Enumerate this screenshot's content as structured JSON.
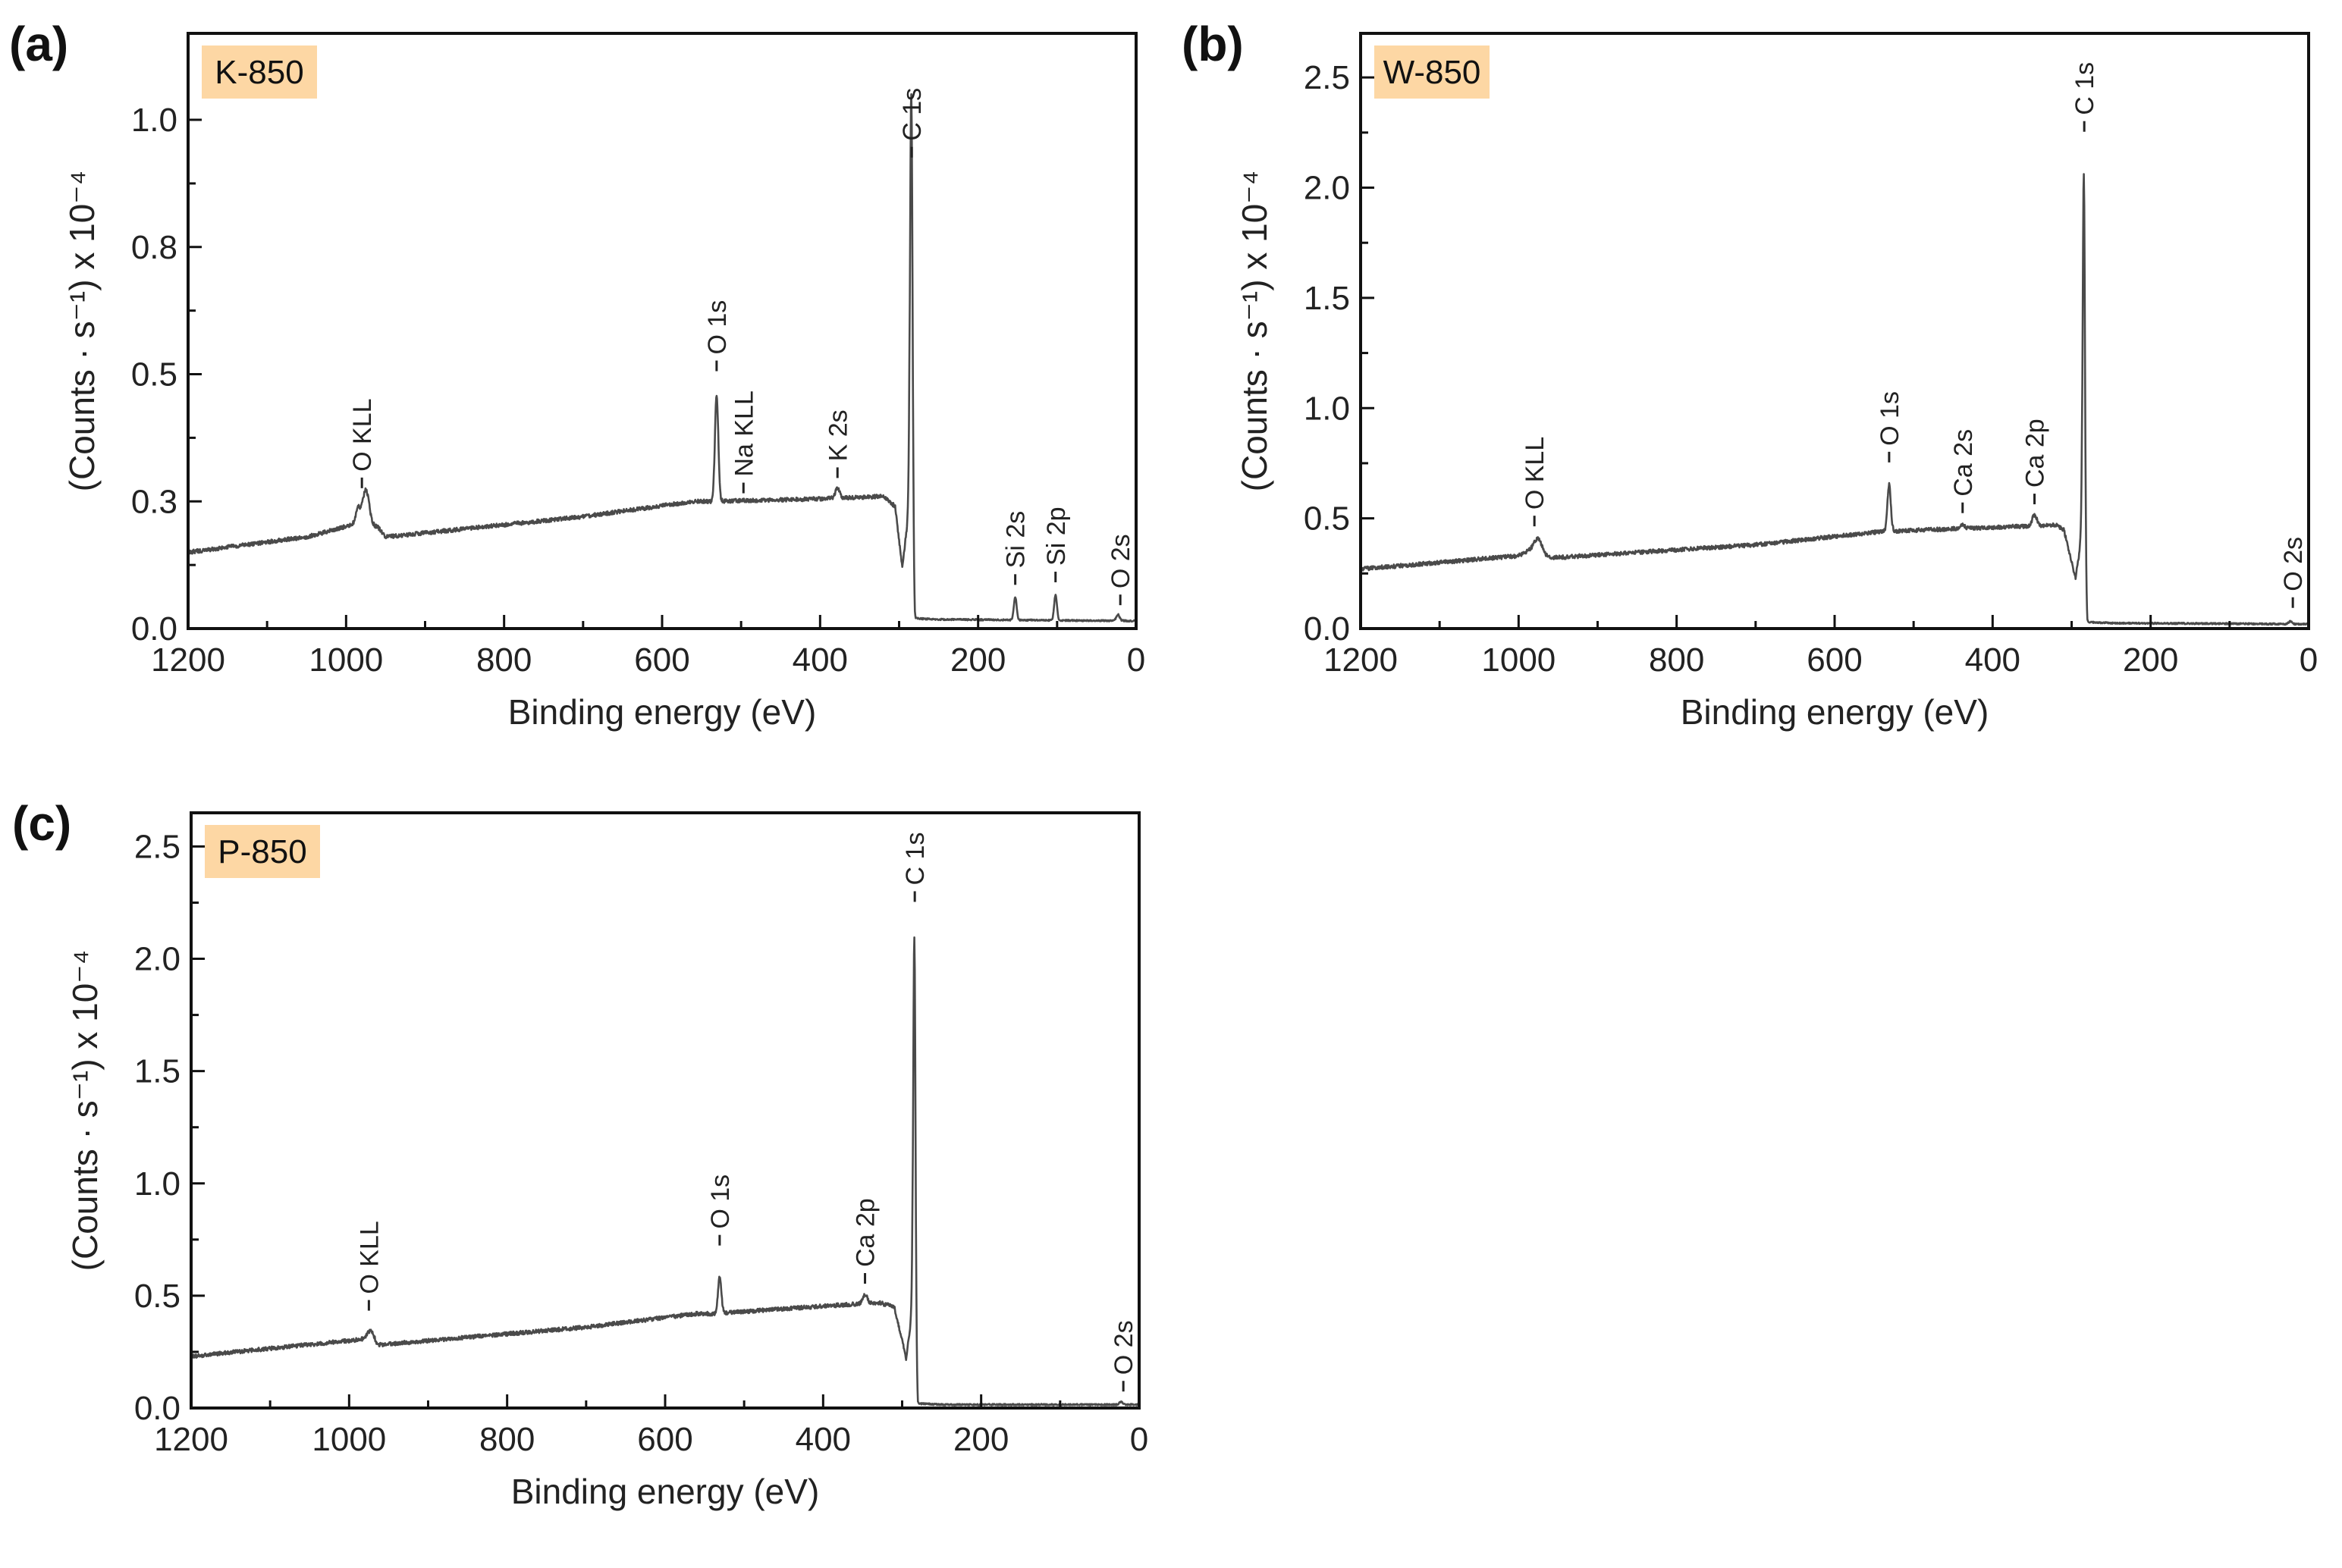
{
  "figure": {
    "colors": {
      "line": "#4a4a4a",
      "axis": "#111111",
      "sample_tag": "#fdd7a4",
      "text": "#222222"
    }
  },
  "chart_data": [
    {
      "type": "line",
      "panel_letter": "(a)",
      "sample_label": "K-850",
      "xlabel": "Binding energy (eV)",
      "ylabel": "(Counts · s⁻¹) x 10⁻⁴",
      "xlim": [
        1200,
        0
      ],
      "ylim": [
        0,
        1.17
      ],
      "x_ticks": [
        1200,
        1000,
        800,
        600,
        400,
        200,
        0
      ],
      "x_tick_labels": [
        "1200",
        "1000",
        "800",
        "600",
        "400",
        "200",
        "0"
      ],
      "y_ticks": [
        0.0,
        0.25,
        0.5,
        0.75,
        1.0
      ],
      "y_tick_labels": [
        "0.0",
        "0.3",
        "0.5",
        "0.8",
        "1.0"
      ],
      "baseline": [
        [
          1200,
          0.15
        ],
        [
          1050,
          0.18
        ],
        [
          990,
          0.205
        ],
        [
          960,
          0.2
        ],
        [
          950,
          0.18
        ],
        [
          700,
          0.22
        ],
        [
          560,
          0.25
        ],
        [
          540,
          0.25
        ],
        [
          400,
          0.255
        ],
        [
          320,
          0.26
        ],
        [
          305,
          0.24
        ],
        [
          296,
          0.12
        ],
        [
          290,
          0.2
        ],
        [
          287,
          0.28
        ],
        [
          284,
          0.15
        ],
        [
          280,
          0.02
        ],
        [
          250,
          0.018
        ],
        [
          0,
          0.015
        ]
      ],
      "peaks": [
        {
          "x": 985,
          "h": 0.03,
          "w": 4
        },
        {
          "x": 975,
          "h": 0.07,
          "w": 6
        },
        {
          "x": 531,
          "h": 0.21,
          "w": 3
        },
        {
          "x": 378,
          "h": 0.02,
          "w": 4
        },
        {
          "x": 284.5,
          "h": 0.88,
          "w": 2.2
        },
        {
          "x": 153,
          "h": 0.045,
          "w": 2.5
        },
        {
          "x": 102,
          "h": 0.05,
          "w": 2.5
        },
        {
          "x": 23,
          "h": 0.012,
          "w": 3
        }
      ],
      "annotations": [
        {
          "label": "O KLL",
          "x": 980,
          "y": 0.27
        },
        {
          "label": "O 1s",
          "x": 531,
          "y": 0.5
        },
        {
          "label": "Na KLL",
          "x": 497,
          "y": 0.26
        },
        {
          "label": "K 2s",
          "x": 378,
          "y": 0.29
        },
        {
          "label": "C 1s",
          "x": 284,
          "y": 0.92
        },
        {
          "label": "Si 2s",
          "x": 153,
          "y": 0.08
        },
        {
          "label": "Si 2p",
          "x": 102,
          "y": 0.085
        },
        {
          "label": "O 2s",
          "x": 20,
          "y": 0.04
        }
      ]
    },
    {
      "type": "line",
      "panel_letter": "(b)",
      "sample_label": "W-850",
      "xlabel": "Binding energy (eV)",
      "ylabel": "(Counts · s⁻¹) x 10⁻⁴",
      "xlim": [
        1200,
        0
      ],
      "ylim": [
        0,
        2.7
      ],
      "x_ticks": [
        1200,
        1000,
        800,
        600,
        400,
        200,
        0
      ],
      "x_tick_labels": [
        "1200",
        "1000",
        "800",
        "600",
        "400",
        "200",
        "0"
      ],
      "y_ticks": [
        0.0,
        0.5,
        1.0,
        1.5,
        2.0,
        2.5
      ],
      "y_tick_labels": [
        "0.0",
        "0.5",
        "1.0",
        "1.5",
        "2.0",
        "2.5"
      ],
      "baseline": [
        [
          1200,
          0.27
        ],
        [
          1000,
          0.33
        ],
        [
          980,
          0.37
        ],
        [
          960,
          0.32
        ],
        [
          700,
          0.38
        ],
        [
          540,
          0.44
        ],
        [
          320,
          0.47
        ],
        [
          310,
          0.45
        ],
        [
          300,
          0.3
        ],
        [
          295,
          0.23
        ],
        [
          290,
          0.35
        ],
        [
          287,
          0.5
        ],
        [
          283,
          0.2
        ],
        [
          280,
          0.03
        ],
        [
          250,
          0.025
        ],
        [
          0,
          0.02
        ]
      ],
      "peaks": [
        {
          "x": 975,
          "h": 0.05,
          "w": 6
        },
        {
          "x": 531,
          "h": 0.21,
          "w": 3
        },
        {
          "x": 438,
          "h": 0.015,
          "w": 4
        },
        {
          "x": 347,
          "h": 0.05,
          "w": 4
        },
        {
          "x": 284.5,
          "h": 1.75,
          "w": 2.0
        },
        {
          "x": 23,
          "h": 0.012,
          "w": 3
        }
      ],
      "annotations": [
        {
          "label": "O KLL",
          "x": 980,
          "y": 0.45
        },
        {
          "label": "O 1s",
          "x": 531,
          "y": 0.74
        },
        {
          "label": "Ca 2s",
          "x": 438,
          "y": 0.51
        },
        {
          "label": "Ca 2p",
          "x": 347,
          "y": 0.55
        },
        {
          "label": "C 1s",
          "x": 284,
          "y": 2.24
        },
        {
          "label": "O 2s",
          "x": 20,
          "y": 0.08
        }
      ]
    },
    {
      "type": "line",
      "panel_letter": "(c)",
      "sample_label": "P-850",
      "xlabel": "Binding energy (eV)",
      "ylabel": "(Counts · s⁻¹) x 10⁻⁴",
      "xlim": [
        1200,
        0
      ],
      "ylim": [
        0,
        2.65
      ],
      "x_ticks": [
        1200,
        1000,
        800,
        600,
        400,
        200,
        0
      ],
      "x_tick_labels": [
        "1200",
        "1000",
        "800",
        "600",
        "400",
        "200",
        "0"
      ],
      "y_ticks": [
        0.0,
        0.5,
        1.0,
        1.5,
        2.0,
        2.5
      ],
      "y_tick_labels": [
        "0.0",
        "0.5",
        "1.0",
        "1.5",
        "2.0",
        "2.5"
      ],
      "baseline": [
        [
          1200,
          0.23
        ],
        [
          1000,
          0.3
        ],
        [
          975,
          0.31
        ],
        [
          965,
          0.28
        ],
        [
          700,
          0.36
        ],
        [
          560,
          0.42
        ],
        [
          540,
          0.42
        ],
        [
          330,
          0.47
        ],
        [
          310,
          0.45
        ],
        [
          300,
          0.3
        ],
        [
          295,
          0.22
        ],
        [
          290,
          0.35
        ],
        [
          287,
          0.5
        ],
        [
          283,
          0.2
        ],
        [
          280,
          0.02
        ],
        [
          250,
          0.015
        ],
        [
          0,
          0.015
        ]
      ],
      "peaks": [
        {
          "x": 972,
          "h": 0.04,
          "w": 6
        },
        {
          "x": 531,
          "h": 0.16,
          "w": 3
        },
        {
          "x": 347,
          "h": 0.04,
          "w": 4
        },
        {
          "x": 284.5,
          "h": 1.78,
          "w": 2.0
        },
        {
          "x": 23,
          "h": 0.012,
          "w": 3
        }
      ],
      "annotations": [
        {
          "label": "O KLL",
          "x": 975,
          "y": 0.42
        },
        {
          "label": "O 1s",
          "x": 531,
          "y": 0.71
        },
        {
          "label": "Ca 2p",
          "x": 347,
          "y": 0.54
        },
        {
          "label": "C 1s",
          "x": 284,
          "y": 2.24
        },
        {
          "label": "O 2s",
          "x": 20,
          "y": 0.06
        }
      ]
    }
  ]
}
